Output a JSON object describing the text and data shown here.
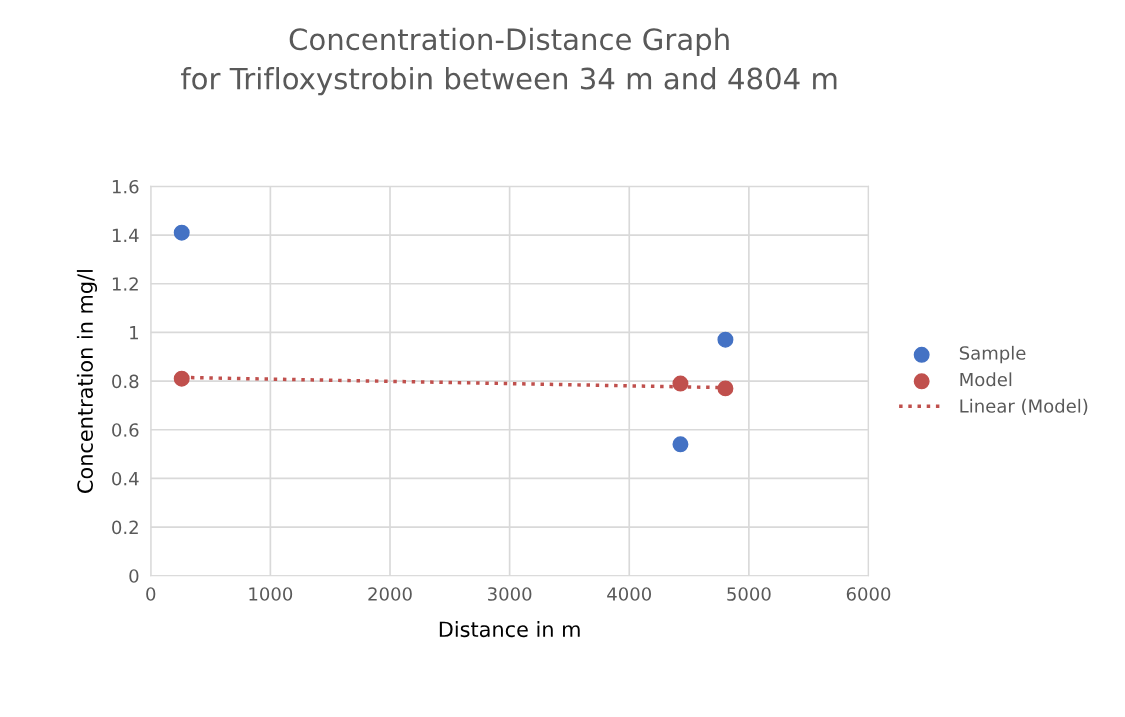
{
  "chart_data": {
    "type": "scatter",
    "title": "Concentration-Distance Graph\nfor Trifloxystrobin between 34 m and 4804 m",
    "xlabel": "Distance in m",
    "ylabel": "Concentration in mg/l",
    "series": [
      {
        "name": "Sample",
        "color": "#4472c4",
        "x": [
          259,
          4428,
          4804
        ],
        "values": [
          1.41,
          0.54,
          0.97
        ]
      },
      {
        "name": "Model",
        "color": "#c0504d",
        "x": [
          259,
          4428,
          4804
        ],
        "values": [
          0.81,
          0.79,
          0.77
        ]
      },
      {
        "name": "Linear (Model)",
        "type": "line",
        "color": "#c0504d",
        "line_style": "dotted",
        "marker": "none",
        "x": [
          259,
          4804
        ],
        "values": [
          0.815,
          0.773
        ]
      }
    ],
    "marker": "circle",
    "xlim": [
      0,
      6000
    ],
    "xticks": [
      0,
      1000,
      2000,
      3000,
      4000,
      5000,
      6000
    ],
    "ylim": [
      0,
      1.6
    ],
    "yticks": [
      {
        "value": 0,
        "label": "0"
      },
      0.2,
      0.4,
      0.6,
      0.8,
      {
        "value": 1,
        "label": "1"
      },
      1.2,
      1.4,
      1.6
    ],
    "grid": true,
    "legend": "right"
  }
}
